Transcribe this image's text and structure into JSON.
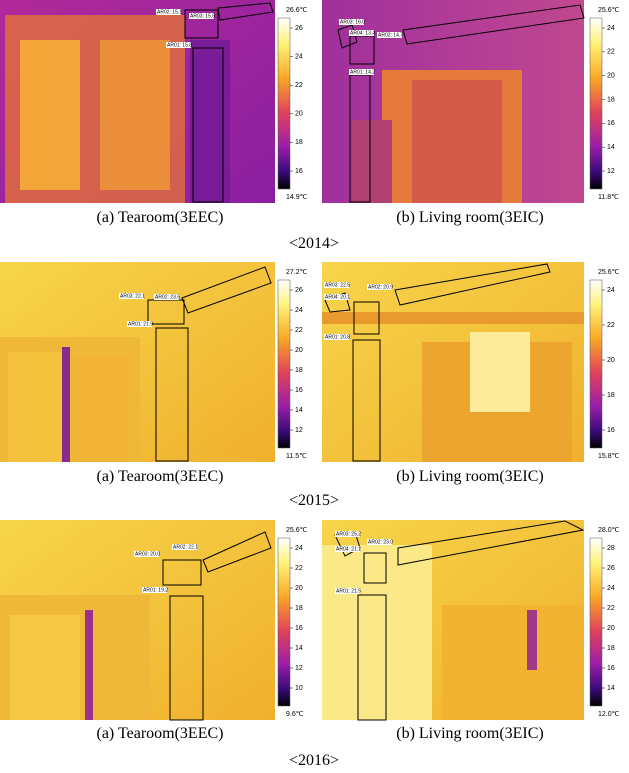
{
  "rows": [
    {
      "year": "<2014>",
      "panels": [
        {
          "caption": "(a)  Tearoom(3EEC)",
          "scale_max": "26.6℃",
          "scale_min": "14.9℃",
          "scale_ticks": [
            26,
            24,
            22,
            20,
            18,
            16
          ],
          "areas": [
            "AR02: 15.1",
            "AR03: 15.9",
            "AR01: 15.8"
          ]
        },
        {
          "caption": "(b)  Living  room(3EIC)",
          "scale_max": "25.6℃",
          "scale_min": "11.8℃",
          "scale_ticks": [
            24,
            22,
            20,
            18,
            16,
            14,
            12
          ],
          "areas": [
            "AR03: 16.0",
            "AR04: 13.4",
            "AR02: 14.7",
            "AR01: 14.2"
          ]
        }
      ]
    },
    {
      "year": "<2015>",
      "panels": [
        {
          "caption": "(a)  Tearoom(3EEC)",
          "scale_max": "27.2℃",
          "scale_min": "11.5℃",
          "scale_ticks": [
            26,
            24,
            22,
            20,
            18,
            16,
            14,
            12
          ],
          "areas": [
            "AR03: 22.1",
            "AR02: 23.5",
            "AR01: 21.9"
          ]
        },
        {
          "caption": "(b)  Living  room(3EIC)",
          "scale_max": "25.6℃",
          "scale_min": "15.8℃",
          "scale_ticks": [
            24,
            22,
            20,
            18,
            16
          ],
          "areas": [
            "AR03: 22.5",
            "AR04: 20.1",
            "AR02: 20.9",
            "AR01: 20.8"
          ]
        }
      ]
    },
    {
      "year": "<2016>",
      "panels": [
        {
          "caption": "(a)  Tearoom(3EEC)",
          "scale_max": "25.6℃",
          "scale_min": "9.6℃",
          "scale_ticks": [
            24,
            22,
            20,
            18,
            16,
            14,
            12,
            10
          ],
          "areas": [
            "AR02: 22.1",
            "AR03: 20.0",
            "AR01: 19.2"
          ]
        },
        {
          "caption": "(b)  Living  room(3EIC)",
          "scale_max": "28.0℃",
          "scale_min": "12.0℃",
          "scale_ticks": [
            28,
            26,
            24,
            22,
            20,
            18,
            16,
            14
          ],
          "areas": [
            "AR03: 25.2",
            "AR04: 21.1",
            "AR02: 23.0",
            "AR01: 21.5"
          ]
        }
      ]
    }
  ]
}
